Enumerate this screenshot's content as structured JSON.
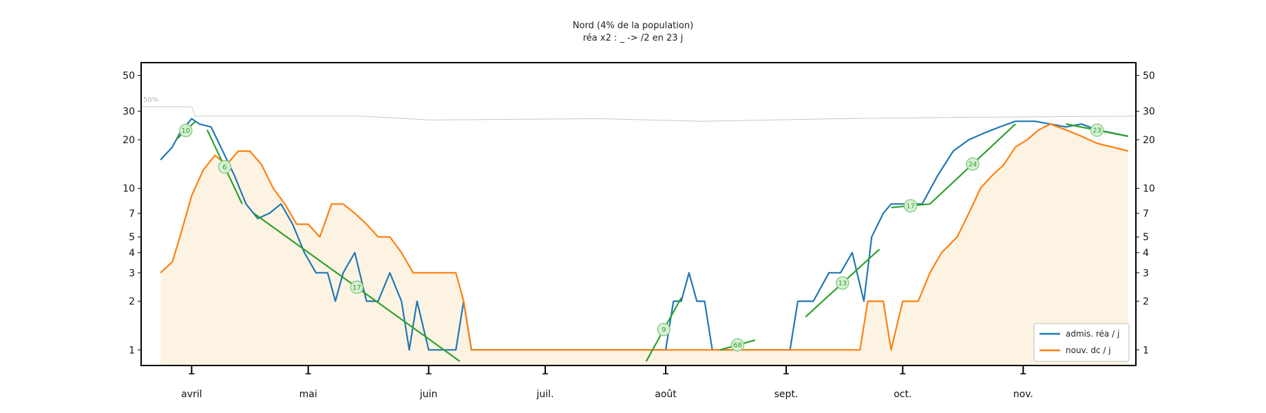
{
  "chart_data": {
    "type": "line",
    "title": "Nord (4% de la population)",
    "subtitle": "réa x2 : _ -> /2 en 23 j",
    "xlabel": "",
    "ylabel": "",
    "y_scale": "log",
    "ylim": [
      0.8,
      60
    ],
    "x_range": [
      "2020-03-19",
      "2020-11-30"
    ],
    "y_ticks": [
      1,
      2,
      3,
      4,
      5,
      7,
      10,
      20,
      30,
      50
    ],
    "x_ticks": [
      {
        "date": "2020-04-01",
        "label": "avril"
      },
      {
        "date": "2020-05-01",
        "label": "mai"
      },
      {
        "date": "2020-06-01",
        "label": "juin"
      },
      {
        "date": "2020-07-01",
        "label": "juil."
      },
      {
        "date": "2020-08-01",
        "label": "août"
      },
      {
        "date": "2020-09-01",
        "label": "sept."
      },
      {
        "date": "2020-10-01",
        "label": "oct."
      },
      {
        "date": "2020-11-01",
        "label": "nov."
      }
    ],
    "grid": false,
    "legend_position": "bottom-right",
    "colors": {
      "admissions": "#1f77b4",
      "deaths": "#ff7f0e",
      "fit": "#2ca02c",
      "bg_fill": "#fdf3e3",
      "threshold": "#c8c8c8"
    },
    "threshold_label": "50%",
    "threshold_line": [
      [
        "2020-03-19",
        32
      ],
      [
        "2020-04-01",
        32
      ],
      [
        "2020-04-02",
        28
      ],
      [
        "2020-05-15",
        28
      ],
      [
        "2020-06-01",
        26.5
      ],
      [
        "2020-07-15",
        27
      ],
      [
        "2020-08-10",
        26
      ],
      [
        "2020-09-15",
        27
      ],
      [
        "2020-10-15",
        27.5
      ],
      [
        "2020-11-30",
        28
      ]
    ],
    "series": [
      {
        "name": "admis. réa / j",
        "color": "#1f77b4",
        "points": [
          [
            "2020-03-24",
            15
          ],
          [
            "2020-03-27",
            18
          ],
          [
            "2020-03-29",
            22
          ],
          [
            "2020-04-01",
            27
          ],
          [
            "2020-04-03",
            25
          ],
          [
            "2020-04-06",
            24
          ],
          [
            "2020-04-09",
            17
          ],
          [
            "2020-04-12",
            12
          ],
          [
            "2020-04-15",
            8
          ],
          [
            "2020-04-18",
            6.5
          ],
          [
            "2020-04-21",
            7
          ],
          [
            "2020-04-24",
            8
          ],
          [
            "2020-04-27",
            6
          ],
          [
            "2020-04-30",
            4
          ],
          [
            "2020-05-03",
            3
          ],
          [
            "2020-05-06",
            3
          ],
          [
            "2020-05-08",
            2
          ],
          [
            "2020-05-10",
            3
          ],
          [
            "2020-05-13",
            4
          ],
          [
            "2020-05-16",
            2
          ],
          [
            "2020-05-19",
            2
          ],
          [
            "2020-05-22",
            3
          ],
          [
            "2020-05-25",
            2
          ],
          [
            "2020-05-27",
            1
          ],
          [
            "2020-05-29",
            2
          ],
          [
            "2020-06-01",
            1
          ],
          [
            "2020-06-05",
            1
          ],
          [
            "2020-06-08",
            1
          ],
          [
            "2020-06-10",
            2
          ],
          [
            "2020-06-12",
            1
          ],
          [
            "2020-07-30",
            1
          ],
          [
            "2020-08-01",
            1
          ],
          [
            "2020-08-03",
            2
          ],
          [
            "2020-08-05",
            2
          ],
          [
            "2020-08-07",
            3
          ],
          [
            "2020-08-09",
            2
          ],
          [
            "2020-08-11",
            2
          ],
          [
            "2020-08-13",
            1
          ],
          [
            "2020-09-02",
            1
          ],
          [
            "2020-09-04",
            2
          ],
          [
            "2020-09-08",
            2
          ],
          [
            "2020-09-12",
            3
          ],
          [
            "2020-09-15",
            3
          ],
          [
            "2020-09-18",
            4
          ],
          [
            "2020-09-21",
            2
          ],
          [
            "2020-09-23",
            5
          ],
          [
            "2020-09-26",
            7
          ],
          [
            "2020-09-28",
            8
          ],
          [
            "2020-10-03",
            8
          ],
          [
            "2020-10-06",
            8
          ],
          [
            "2020-10-10",
            12
          ],
          [
            "2020-10-14",
            17
          ],
          [
            "2020-10-18",
            20
          ],
          [
            "2020-10-22",
            22
          ],
          [
            "2020-10-26",
            24
          ],
          [
            "2020-10-30",
            26
          ],
          [
            "2020-11-04",
            26
          ],
          [
            "2020-11-08",
            25
          ],
          [
            "2020-11-12",
            24
          ],
          [
            "2020-11-16",
            25
          ],
          [
            "2020-11-20",
            23
          ],
          [
            "2020-11-24",
            22
          ],
          [
            "2020-11-28",
            21
          ]
        ]
      },
      {
        "name": "nouv. dc / j",
        "color": "#ff7f0e",
        "points": [
          [
            "2020-03-24",
            3
          ],
          [
            "2020-03-27",
            3.5
          ],
          [
            "2020-03-29",
            5
          ],
          [
            "2020-04-01",
            9
          ],
          [
            "2020-04-04",
            13
          ],
          [
            "2020-04-07",
            16
          ],
          [
            "2020-04-10",
            14
          ],
          [
            "2020-04-13",
            17
          ],
          [
            "2020-04-16",
            17
          ],
          [
            "2020-04-19",
            14
          ],
          [
            "2020-04-22",
            10
          ],
          [
            "2020-04-25",
            8
          ],
          [
            "2020-04-28",
            6
          ],
          [
            "2020-05-01",
            6
          ],
          [
            "2020-05-04",
            5
          ],
          [
            "2020-05-07",
            8
          ],
          [
            "2020-05-10",
            8
          ],
          [
            "2020-05-13",
            7
          ],
          [
            "2020-05-16",
            6
          ],
          [
            "2020-05-19",
            5
          ],
          [
            "2020-05-22",
            5
          ],
          [
            "2020-05-25",
            4
          ],
          [
            "2020-05-28",
            3
          ],
          [
            "2020-06-05",
            3
          ],
          [
            "2020-06-08",
            3
          ],
          [
            "2020-06-10",
            2
          ],
          [
            "2020-06-12",
            1
          ],
          [
            "2020-06-15",
            1
          ],
          [
            "2020-07-01",
            1
          ],
          [
            "2020-07-15",
            1
          ],
          [
            "2020-08-01",
            1
          ],
          [
            "2020-08-05",
            1
          ],
          [
            "2020-08-08",
            1
          ],
          [
            "2020-09-15",
            1
          ],
          [
            "2020-09-20",
            1
          ],
          [
            "2020-09-22",
            2
          ],
          [
            "2020-09-26",
            2
          ],
          [
            "2020-09-28",
            1
          ],
          [
            "2020-10-01",
            2
          ],
          [
            "2020-10-05",
            2
          ],
          [
            "2020-10-08",
            3
          ],
          [
            "2020-10-11",
            4
          ],
          [
            "2020-10-15",
            5
          ],
          [
            "2020-10-18",
            7
          ],
          [
            "2020-10-21",
            10
          ],
          [
            "2020-10-24",
            12
          ],
          [
            "2020-10-27",
            14
          ],
          [
            "2020-10-30",
            18
          ],
          [
            "2020-11-02",
            20
          ],
          [
            "2020-11-05",
            23
          ],
          [
            "2020-11-08",
            25
          ],
          [
            "2020-11-12",
            23
          ],
          [
            "2020-11-16",
            21
          ],
          [
            "2020-11-20",
            19
          ],
          [
            "2020-11-24",
            18
          ],
          [
            "2020-11-28",
            17
          ]
        ]
      }
    ],
    "fit_lines": [
      {
        "start": [
          "2020-03-28",
          20
        ],
        "end": [
          "2020-04-02",
          26
        ],
        "label": "10"
      },
      {
        "start": [
          "2020-04-05",
          23
        ],
        "end": [
          "2020-04-14",
          8
        ],
        "label": "6"
      },
      {
        "start": [
          "2020-04-17",
          7
        ],
        "end": [
          "2020-06-09",
          0.85
        ],
        "label": "17"
      },
      {
        "start": [
          "2020-07-27",
          0.85
        ],
        "end": [
          "2020-08-05",
          2.1
        ],
        "label": "9"
      },
      {
        "start": [
          "2020-08-15",
          1
        ],
        "end": [
          "2020-08-24",
          1.15
        ],
        "label": "68"
      },
      {
        "start": [
          "2020-09-06",
          1.6
        ],
        "end": [
          "2020-09-25",
          4.2
        ],
        "label": "13"
      },
      {
        "start": [
          "2020-09-28",
          7.6
        ],
        "end": [
          "2020-10-08",
          8
        ],
        "label": "17"
      },
      {
        "start": [
          "2020-10-08",
          8
        ],
        "end": [
          "2020-10-30",
          25
        ],
        "label": "24"
      },
      {
        "start": [
          "2020-11-12",
          25
        ],
        "end": [
          "2020-11-28",
          21
        ],
        "label": "23"
      }
    ]
  },
  "legend": {
    "admissions_label": "admis. réa / j",
    "deaths_label": "nouv. dc / j"
  }
}
